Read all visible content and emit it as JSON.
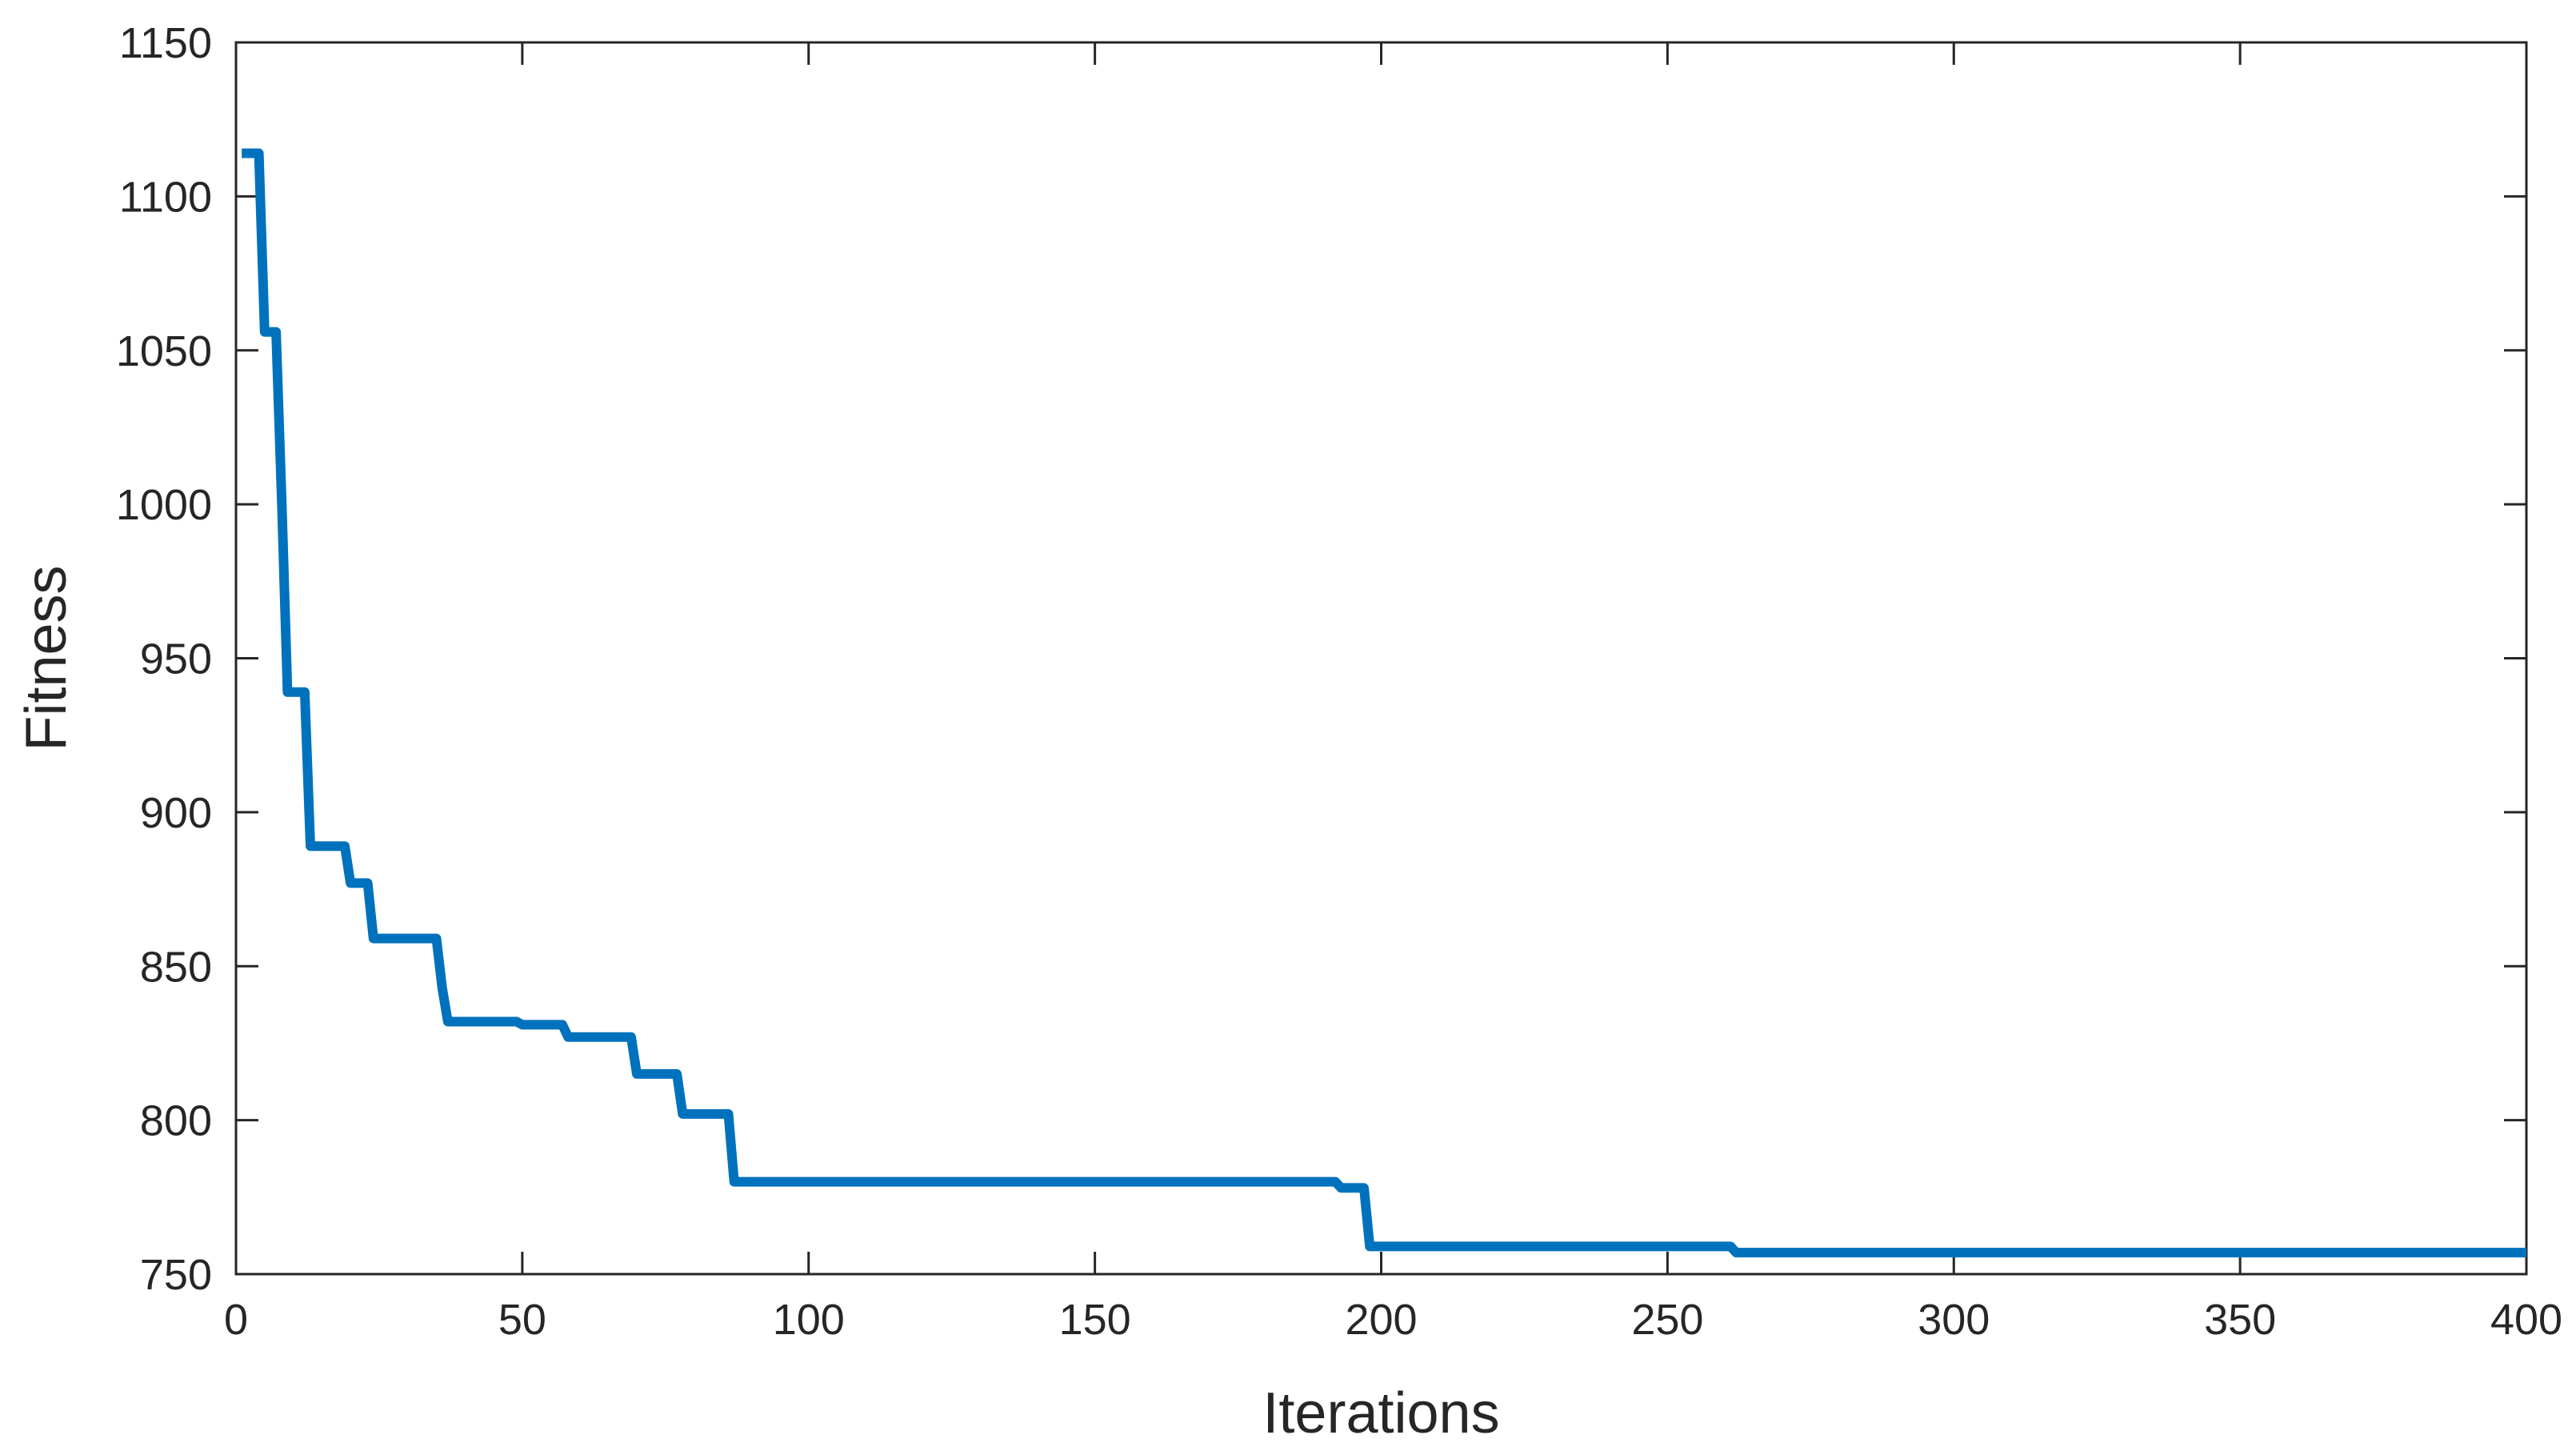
{
  "chart_data": {
    "type": "line",
    "title": "",
    "xlabel": "Iterations",
    "ylabel": "Fitness",
    "xlim": [
      0,
      400
    ],
    "ylim": [
      750,
      1150
    ],
    "xticks": [
      0,
      50,
      100,
      150,
      200,
      250,
      300,
      350,
      400
    ],
    "yticks": [
      750,
      800,
      850,
      900,
      950,
      1000,
      1050,
      1100,
      1150
    ],
    "xtick_labels": [
      "0",
      "50",
      "100",
      "150",
      "200",
      "250",
      "300",
      "350",
      "400"
    ],
    "ytick_labels": [
      "750",
      "800",
      "850",
      "900",
      "950",
      "1000",
      "1050",
      "1100",
      "1150"
    ],
    "grid": false,
    "legend": "none",
    "line_color": "#0072BD",
    "series": [
      {
        "x": [
          1,
          4,
          5,
          7,
          8,
          9,
          10,
          12,
          13,
          19,
          20,
          23,
          24,
          35,
          36,
          37,
          49,
          50,
          57,
          58,
          69,
          70,
          77,
          78,
          86,
          87,
          192,
          193,
          197,
          198,
          261,
          262,
          400
        ],
        "y": [
          1114,
          1114,
          1056,
          1056,
          1000,
          939,
          939,
          939,
          889,
          889,
          877,
          877,
          859,
          859,
          843,
          832,
          832,
          831,
          831,
          827,
          827,
          815,
          815,
          802,
          802,
          780,
          780,
          778,
          778,
          759,
          759,
          757,
          757
        ]
      }
    ]
  }
}
